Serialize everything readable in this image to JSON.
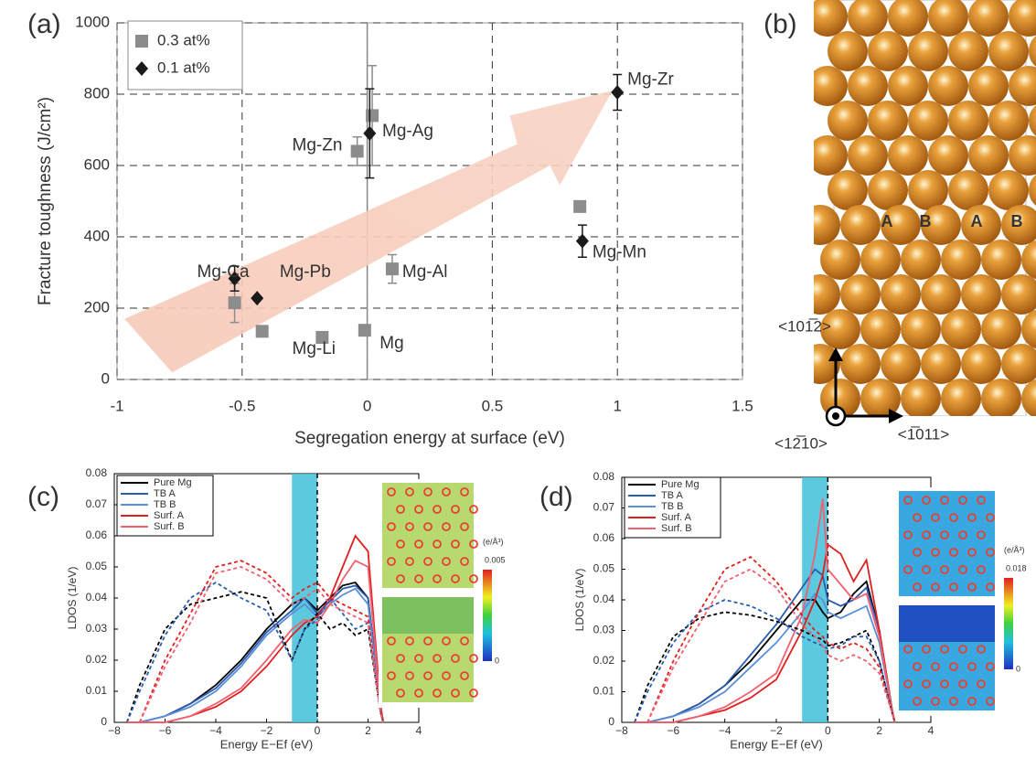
{
  "chart_data": [
    {
      "type": "scatter",
      "panel_label": "(a)",
      "xlabel": "Segregation energy at surface (eV)",
      "ylabel": "Fracture toughness (J/cm²)",
      "xlim": [
        -1,
        1.5
      ],
      "xticks": [
        -1,
        -0.5,
        0,
        0.5,
        1,
        1.5
      ],
      "ylim": [
        0,
        1000
      ],
      "yticks": [
        0,
        200,
        400,
        600,
        800,
        1000
      ],
      "grid": true,
      "legend": "upper-left",
      "series": [
        {
          "name": "0.3 at%",
          "color": "#8c8c8c",
          "marker": "square",
          "x": [
            -0.53,
            -0.42,
            -0.18,
            -0.01,
            -0.04,
            0.02,
            0.1,
            0.85
          ],
          "values": [
            215,
            135,
            118,
            138,
            640,
            740,
            310,
            485
          ],
          "errors": [
            55,
            null,
            null,
            null,
            40,
            140,
            40,
            null
          ]
        },
        {
          "name": "0.1 at%",
          "color": "#1a1a1a",
          "marker": "diamond",
          "x": [
            -0.53,
            -0.44,
            0.01,
            0.86,
            1.0
          ],
          "values": [
            283,
            228,
            690,
            388,
            805
          ],
          "errors": [
            35,
            null,
            125,
            45,
            50
          ]
        }
      ],
      "annotations": [
        "Mg-Ca",
        "Mg-Pb",
        "Mg-Li",
        "Mg",
        "Mg-Zn",
        "Mg-Ag",
        "Mg-Al",
        "Mg-Mn",
        "Mg-Zr"
      ]
    },
    {
      "type": "line",
      "panel_label": "(c)",
      "xlabel": "Energy E−Ef (eV)",
      "ylabel": "LDOS (1/eV)",
      "xlim": [
        -8,
        4
      ],
      "xticks": [
        {
          "value": -8,
          "label": "−8"
        },
        {
          "value": -6,
          "label": "−6"
        },
        {
          "value": -4,
          "label": "−4"
        },
        {
          "value": -2,
          "label": "−2"
        },
        0,
        2,
        4
      ],
      "ylim": [
        0,
        0.08
      ],
      "yticks": [
        0,
        0.01,
        0.02,
        0.03,
        0.04,
        0.05,
        0.06,
        0.07,
        0.08
      ],
      "highlight_x": [
        -1,
        0
      ],
      "vline": 0,
      "x": [
        -7.5,
        -7,
        -6,
        -5,
        -4,
        -3,
        -2,
        -1,
        -0.5,
        0,
        0.5,
        1,
        1.5,
        2,
        2.5,
        2.6
      ],
      "series": [
        {
          "name": "Pure Mg",
          "color": "#000000",
          "values": [
            0,
            0,
            0.002,
            0.006,
            0.012,
            0.02,
            0.03,
            0.038,
            0.04,
            0.036,
            0.04,
            0.044,
            0.045,
            0.04,
            0.005,
            0
          ]
        },
        {
          "name": "TB A",
          "color": "#2a5db0",
          "values": [
            0,
            0,
            0.002,
            0.006,
            0.011,
            0.019,
            0.029,
            0.036,
            0.04,
            0.035,
            0.039,
            0.043,
            0.044,
            0.04,
            0.004,
            0
          ]
        },
        {
          "name": "TB B",
          "color": "#5b8fd6",
          "values": [
            0,
            0,
            0.002,
            0.005,
            0.01,
            0.018,
            0.028,
            0.035,
            0.038,
            0.034,
            0.038,
            0.041,
            0.043,
            0.038,
            0.004,
            0
          ]
        },
        {
          "name": "Surf. A",
          "color": "#e02020",
          "values": [
            0,
            0,
            0,
            0.002,
            0.005,
            0.01,
            0.018,
            0.028,
            0.032,
            0.034,
            0.04,
            0.05,
            0.06,
            0.055,
            0.005,
            0
          ]
        },
        {
          "name": "Surf. B",
          "color": "#f06070",
          "values": [
            0,
            0,
            0,
            0.002,
            0.006,
            0.011,
            0.02,
            0.03,
            0.033,
            0.032,
            0.038,
            0.046,
            0.052,
            0.05,
            0.004,
            0
          ]
        },
        {
          "color": "#000000",
          "dashed": true,
          "values": [
            0,
            0.012,
            0.03,
            0.038,
            0.04,
            0.042,
            0.04,
            0.02,
            0.03,
            0.035,
            0.03,
            0.032,
            0.028,
            0.03,
            0.003,
            0
          ]
        },
        {
          "color": "#2a5db0",
          "dashed": true,
          "values": [
            0,
            0.01,
            0.028,
            0.04,
            0.045,
            0.04,
            0.036,
            0.02,
            0.03,
            0.033,
            0.04,
            0.035,
            0.03,
            0.032,
            0.003,
            0
          ]
        },
        {
          "color": "#e02020",
          "dashed": true,
          "values": [
            0,
            0,
            0.02,
            0.035,
            0.05,
            0.052,
            0.048,
            0.04,
            0.043,
            0.045,
            0.04,
            0.038,
            0.036,
            0.034,
            0.003,
            0
          ]
        },
        {
          "color": "#f06070",
          "dashed": true,
          "values": [
            0,
            0,
            0.018,
            0.032,
            0.048,
            0.05,
            0.046,
            0.038,
            0.04,
            0.043,
            0.038,
            0.036,
            0.034,
            0.032,
            0.003,
            0
          ]
        }
      ],
      "inset": {
        "unit": "(e/Å³)",
        "max": 0.005,
        "min": 0,
        "style": "green"
      }
    },
    {
      "type": "line",
      "panel_label": "(d)",
      "xlabel": "Energy E−Ef (eV)",
      "ylabel": "LDOS (1/eV)",
      "xlim": [
        -8,
        4
      ],
      "xticks": [
        {
          "value": -8,
          "label": "−8"
        },
        {
          "value": -6,
          "label": "−6"
        },
        {
          "value": -4,
          "label": "−4"
        },
        {
          "value": -2,
          "label": "−2"
        },
        0,
        2,
        4
      ],
      "ylim": [
        0,
        0.08
      ],
      "yticks": [
        0,
        0.01,
        0.02,
        0.03,
        0.04,
        0.05,
        0.06,
        0.07,
        0.08
      ],
      "highlight_x": [
        -1,
        0
      ],
      "vline": 0,
      "x": [
        -7.5,
        -7,
        -6,
        -5,
        -4,
        -3,
        -2,
        -1,
        -0.5,
        -0.2,
        0,
        0.5,
        1,
        1.5,
        2,
        2.5,
        2.6
      ],
      "series": [
        {
          "name": "Pure Mg",
          "color": "#000000",
          "values": [
            0,
            0,
            0.002,
            0.006,
            0.012,
            0.02,
            0.03,
            0.04,
            0.04,
            0.036,
            0.034,
            0.036,
            0.042,
            0.046,
            0.03,
            0.004,
            0
          ]
        },
        {
          "name": "TB A",
          "color": "#2a5db0",
          "values": [
            0,
            0,
            0.002,
            0.006,
            0.012,
            0.022,
            0.032,
            0.044,
            0.05,
            0.048,
            0.04,
            0.038,
            0.04,
            0.044,
            0.03,
            0.004,
            0
          ]
        },
        {
          "name": "TB B",
          "color": "#5b8fd6",
          "values": [
            0,
            0,
            0.002,
            0.005,
            0.01,
            0.018,
            0.026,
            0.036,
            0.042,
            0.04,
            0.036,
            0.034,
            0.036,
            0.038,
            0.026,
            0.004,
            0
          ]
        },
        {
          "name": "Surf. A",
          "color": "#e02020",
          "values": [
            0,
            0,
            0,
            0.002,
            0.004,
            0.008,
            0.014,
            0.03,
            0.04,
            0.048,
            0.058,
            0.055,
            0.046,
            0.053,
            0.03,
            0.004,
            0
          ]
        },
        {
          "name": "Surf. B",
          "color": "#f06070",
          "values": [
            0,
            0,
            0,
            0.002,
            0.005,
            0.01,
            0.016,
            0.035,
            0.055,
            0.073,
            0.05,
            0.045,
            0.04,
            0.042,
            0.028,
            0.004,
            0
          ]
        },
        {
          "color": "#000000",
          "dashed": true,
          "values": [
            0,
            0.012,
            0.028,
            0.034,
            0.036,
            0.035,
            0.033,
            0.03,
            0.028,
            0.027,
            0.025,
            0.026,
            0.028,
            0.03,
            0.02,
            0.003,
            0
          ]
        },
        {
          "color": "#2a5db0",
          "dashed": true,
          "values": [
            0,
            0.01,
            0.026,
            0.036,
            0.04,
            0.038,
            0.034,
            0.028,
            0.026,
            0.025,
            0.024,
            0.025,
            0.028,
            0.028,
            0.02,
            0.003,
            0
          ]
        },
        {
          "color": "#e02020",
          "dashed": true,
          "values": [
            0,
            0,
            0.02,
            0.036,
            0.05,
            0.054,
            0.046,
            0.035,
            0.03,
            0.028,
            0.026,
            0.024,
            0.026,
            0.024,
            0.018,
            0.003,
            0
          ]
        },
        {
          "color": "#f06070",
          "dashed": true,
          "values": [
            0,
            0,
            0.018,
            0.032,
            0.046,
            0.05,
            0.044,
            0.032,
            0.028,
            0.025,
            0.022,
            0.02,
            0.022,
            0.02,
            0.016,
            0.003,
            0
          ]
        }
      ],
      "inset": {
        "unit": "(e/Å³)",
        "max": 0.018,
        "min": 0,
        "style": "blue"
      }
    }
  ],
  "panel_b": {
    "label": "(b)",
    "sites": [
      "A",
      "B",
      "A",
      "B"
    ],
    "directions": [
      "<101̅2>",
      "<12̅10>",
      "<1̅011>"
    ]
  }
}
